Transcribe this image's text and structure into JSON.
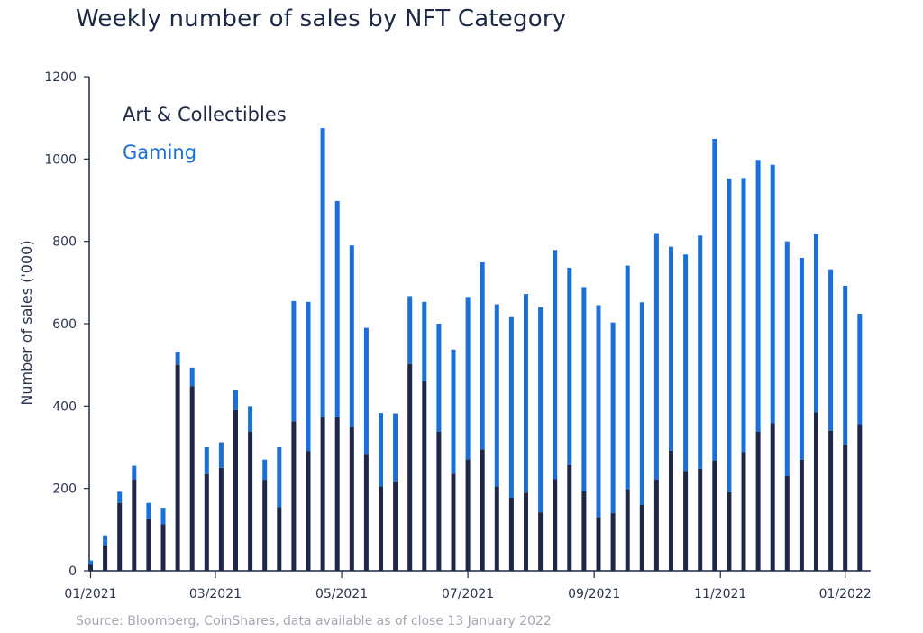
{
  "chart_data": {
    "type": "bar",
    "stacked": true,
    "title": "Weekly number of sales by NFT Category",
    "ylabel": "Number of sales ('000)",
    "xlabel": "",
    "ylim": [
      0,
      1200
    ],
    "yticks": [
      0,
      200,
      400,
      600,
      800,
      1000,
      1200
    ],
    "xtick_labels": [
      "01/2021",
      "03/2021",
      "05/2021",
      "07/2021",
      "09/2021",
      "11/2021",
      "01/2022"
    ],
    "xtick_weeks": [
      0,
      8.6,
      17.3,
      26,
      34.7,
      43.4,
      52
    ],
    "legend": {
      "position": "top-left"
    },
    "colors": {
      "art": "#1c2845",
      "gaming": "#1b6fd8"
    },
    "series": [
      {
        "name": "Art & Collectibles",
        "values": [
          15,
          62,
          165,
          222,
          125,
          113,
          500,
          448,
          235,
          250,
          390,
          338,
          221,
          155,
          363,
          291,
          373,
          373,
          350,
          282,
          205,
          217,
          502,
          460,
          338,
          236,
          271,
          295,
          205,
          178,
          190,
          142,
          223,
          257,
          193,
          130,
          140,
          198,
          160,
          222,
          292,
          242,
          248,
          268,
          191,
          288,
          338,
          358,
          230,
          270,
          385,
          340,
          306,
          356
        ]
      },
      {
        "name": "Gaming",
        "values": [
          10,
          24,
          27,
          33,
          40,
          40,
          32,
          45,
          65,
          62,
          50,
          62,
          49,
          145,
          292,
          362,
          702,
          525,
          440,
          308,
          178,
          165,
          165,
          193,
          262,
          301,
          394,
          454,
          442,
          438,
          482,
          498,
          556,
          479,
          496,
          515,
          463,
          543,
          492,
          598,
          495,
          526,
          566,
          781,
          762,
          666,
          660,
          628,
          570,
          490,
          434,
          392,
          386,
          268
        ]
      }
    ]
  },
  "source": "Source: Bloomberg, CoinShares, data available as of close 13 January 2022"
}
